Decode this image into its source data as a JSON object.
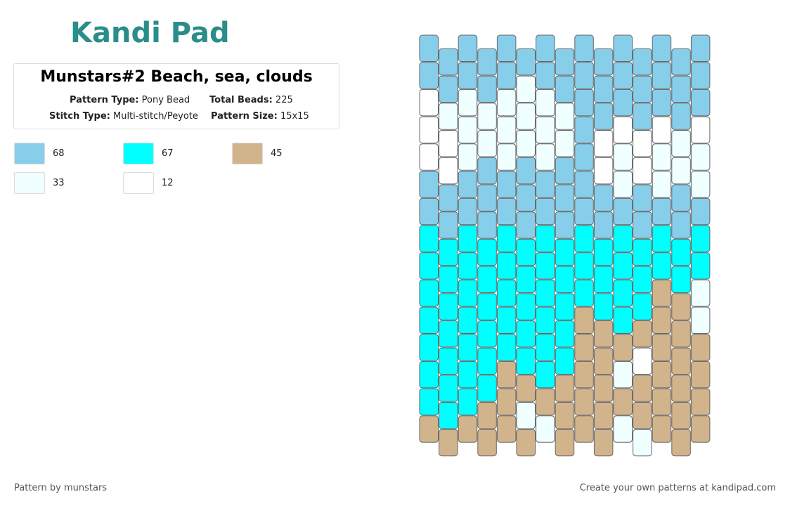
{
  "header": {
    "logo": "Kandi Pad",
    "title": "Munstars#2 Beach, sea, clouds",
    "fields": [
      {
        "label": "Pattern Type:",
        "value": "Pony Bead"
      },
      {
        "label": "Total Beads:",
        "value": "225"
      },
      {
        "label": "Stitch Type:",
        "value": "Multi-stitch/Peyote"
      },
      {
        "label": "Pattern Size:",
        "value": "15x15"
      }
    ]
  },
  "legend": [
    {
      "color": "#87CEEB",
      "count": "68"
    },
    {
      "color": "#00FFFF",
      "count": "67"
    },
    {
      "color": "#D2B48C",
      "count": "45"
    },
    {
      "color": "#F0FFFF",
      "count": "33"
    },
    {
      "color": "#FFFFFF",
      "count": "12"
    }
  ],
  "pattern": {
    "columns": [
      "004440011111112",
      "003440011111112",
      "003330011111112",
      "003300011111122",
      "003330011111222",
      "033300011111232",
      "003330011111123",
      "003300011111222",
      "000000011122222",
      "000440011122222",
      "000433011112323",
      "000440011124223",
      "000433011222222",
      "000330011222222",
      "000433011332222"
    ]
  },
  "footer": {
    "left": "Pattern by munstars",
    "right": "Create your own patterns at kandipad.com"
  }
}
